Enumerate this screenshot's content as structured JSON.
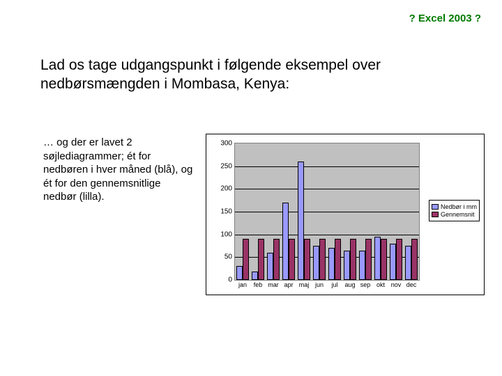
{
  "header": {
    "title": "? Excel 2003 ?"
  },
  "intro": "Lad os tage udgangspunkt i følgende eksempel over nedbørsmængden i Mombasa, Kenya:",
  "desc": "… og der er lavet 2 søjlediagrammer; ét for nedbøren i hver måned (blå), og ét for den gennemsnitlige nedbør (lilla).",
  "chart": {
    "type": "bar",
    "background_color": "#c0c0c0",
    "grid_color": "#000000",
    "series": [
      {
        "name": "Nedbør i mm",
        "color": "#9999ff"
      },
      {
        "name": "Gennemsnit",
        "color": "#993366"
      }
    ],
    "categories": [
      "jan",
      "feb",
      "mar",
      "apr",
      "maj",
      "jun",
      "jul",
      "aug",
      "sep",
      "okt",
      "nov",
      "dec"
    ],
    "values_series1": [
      30,
      18,
      60,
      170,
      260,
      75,
      70,
      65,
      65,
      95,
      80,
      75
    ],
    "values_series2": [
      90,
      90,
      90,
      90,
      90,
      90,
      90,
      90,
      90,
      90,
      90,
      90
    ],
    "ylim": [
      0,
      300
    ],
    "ytick_step": 50,
    "bar_group_width": 0.78,
    "label_fontsize": 10,
    "tick_fontsize": 9
  }
}
